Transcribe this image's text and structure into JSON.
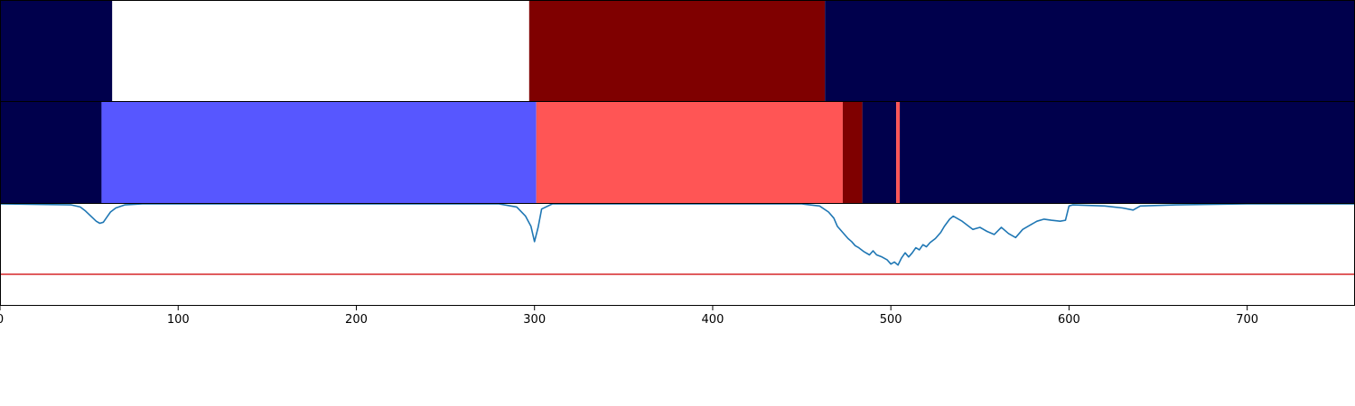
{
  "chart_data": {
    "type": "line",
    "x_axis": {
      "range": [
        0,
        760
      ],
      "ticks": [
        0,
        100,
        200,
        300,
        400,
        500,
        600,
        700
      ],
      "tick_labels": [
        "0",
        "100",
        "200",
        "300",
        "400",
        "500",
        "600",
        "700"
      ]
    },
    "band_tracks": [
      {
        "segments": [
          {
            "start": 0,
            "end": 63,
            "color": "#00004c"
          },
          {
            "start": 63,
            "end": 297,
            "color": "#ffffff"
          },
          {
            "start": 297,
            "end": 463,
            "color": "#7f0000"
          },
          {
            "start": 463,
            "end": 760,
            "color": "#00004c"
          }
        ]
      },
      {
        "segments": [
          {
            "start": 0,
            "end": 57,
            "color": "#00004c"
          },
          {
            "start": 57,
            "end": 301,
            "color": "#5757ff"
          },
          {
            "start": 301,
            "end": 473,
            "color": "#ff5555"
          },
          {
            "start": 473,
            "end": 484,
            "color": "#7f0000"
          },
          {
            "start": 484,
            "end": 503,
            "color": "#00004c"
          },
          {
            "start": 503,
            "end": 505,
            "color": "#ff5555"
          },
          {
            "start": 505,
            "end": 760,
            "color": "#00004c"
          }
        ]
      }
    ],
    "line_panel": {
      "ylim": [
        0,
        1
      ],
      "threshold": {
        "y": 0.31,
        "color": "#d62728"
      },
      "series": [
        {
          "color": "#1f77b4",
          "x": [
            0,
            40,
            45,
            48,
            51,
            54,
            56,
            58,
            60,
            62,
            65,
            70,
            80,
            120,
            200,
            280,
            290,
            295,
            298,
            300,
            302,
            304,
            310,
            320,
            400,
            450,
            460,
            465,
            468,
            470,
            473,
            476,
            478,
            480,
            482,
            485,
            488,
            490,
            492,
            495,
            498,
            500,
            502,
            504,
            506,
            508,
            510,
            512,
            514,
            516,
            518,
            520,
            522,
            525,
            528,
            530,
            533,
            535,
            537,
            540,
            543,
            546,
            550,
            554,
            558,
            562,
            566,
            570,
            574,
            578,
            582,
            586,
            590,
            595,
            598,
            600,
            602,
            620,
            630,
            636,
            640,
            660,
            700,
            760
          ],
          "y": [
            1.0,
            0.99,
            0.97,
            0.93,
            0.88,
            0.83,
            0.81,
            0.82,
            0.87,
            0.92,
            0.96,
            0.99,
            1.0,
            1.0,
            1.0,
            1.0,
            0.97,
            0.88,
            0.78,
            0.63,
            0.77,
            0.95,
            1.0,
            1.0,
            1.0,
            1.0,
            0.98,
            0.92,
            0.86,
            0.78,
            0.72,
            0.66,
            0.63,
            0.59,
            0.57,
            0.53,
            0.5,
            0.54,
            0.5,
            0.48,
            0.45,
            0.41,
            0.43,
            0.4,
            0.47,
            0.52,
            0.48,
            0.52,
            0.57,
            0.55,
            0.6,
            0.58,
            0.62,
            0.66,
            0.72,
            0.78,
            0.85,
            0.88,
            0.86,
            0.83,
            0.79,
            0.75,
            0.77,
            0.73,
            0.7,
            0.77,
            0.71,
            0.67,
            0.75,
            0.79,
            0.83,
            0.85,
            0.84,
            0.83,
            0.84,
            0.98,
            0.99,
            0.98,
            0.96,
            0.94,
            0.98,
            0.99,
            1.0,
            1.0
          ],
          "note_clip": true
        }
      ]
    }
  }
}
